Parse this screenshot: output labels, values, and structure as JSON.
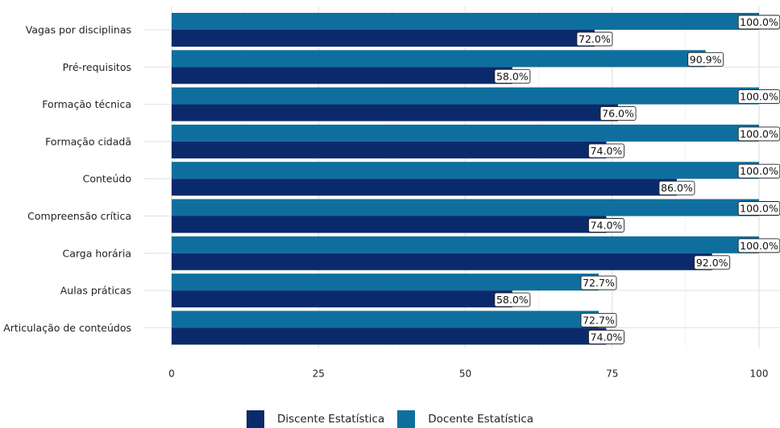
{
  "chart_data": {
    "type": "bar",
    "orientation": "horizontal",
    "categories": [
      "Vagas por disciplinas",
      "Pré-requisitos",
      "Formação técnica",
      "Formação cidadã",
      "Conteúdo",
      "Compreensão crítica",
      "Carga horária",
      "Aulas práticas",
      "Articulação de conteúdos"
    ],
    "series": [
      {
        "name": "Docente Estatística",
        "color": "#0E6F9E",
        "values": [
          100.0,
          90.9,
          100.0,
          100.0,
          100.0,
          100.0,
          100.0,
          72.7,
          72.7
        ],
        "labels": [
          "100.0%",
          "90.9%",
          "100.0%",
          "100.0%",
          "100.0%",
          "100.0%",
          "100.0%",
          "72.7%",
          "72.7%"
        ]
      },
      {
        "name": "Discente Estatística",
        "color": "#0B2A6B",
        "values": [
          72.0,
          58.0,
          76.0,
          74.0,
          86.0,
          74.0,
          92.0,
          58.0,
          74.0
        ],
        "labels": [
          "72.0%",
          "58.0%",
          "76.0%",
          "74.0%",
          "86.0%",
          "74.0%",
          "92.0%",
          "58.0%",
          "74.0%"
        ]
      }
    ],
    "x_ticks": [
      "0",
      "25",
      "50",
      "75",
      "100"
    ],
    "xlim": [
      0,
      100
    ],
    "grid": true,
    "legend_position": "bottom",
    "legend_order": [
      "Discente Estatística",
      "Docente Estatística"
    ]
  }
}
